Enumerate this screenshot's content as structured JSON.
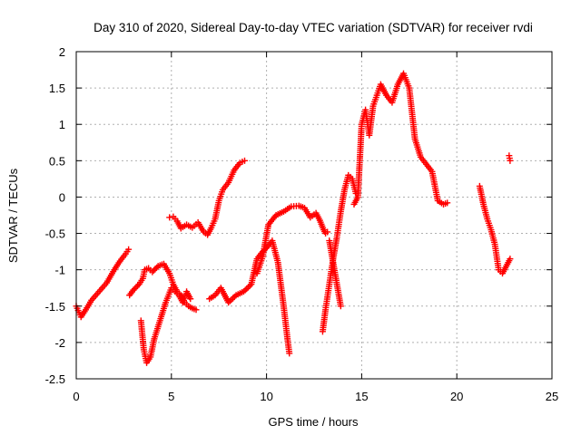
{
  "chart_data": {
    "type": "scatter",
    "title": "Day 310 of 2020, Sidereal Day-to-day VTEC variation (SDTVAR) for receiver rvdi",
    "xlabel": "GPS time / hours",
    "ylabel": "SDTVAR / TECUs",
    "xlim": [
      0,
      25
    ],
    "ylim": [
      -2.5,
      2
    ],
    "xticks": [
      "0",
      "5",
      "10",
      "15",
      "20",
      "25"
    ],
    "yticks": [
      "-2.5",
      "-2",
      "-1.5",
      "-1",
      "-0.5",
      "0",
      "0.5",
      "1",
      "1.5",
      "2"
    ],
    "grid": true,
    "marker": "+",
    "marker_color": "#ff0000",
    "series": [
      {
        "x": [
          0.0,
          0.25,
          0.5,
          0.8,
          1.2,
          1.6,
          2.0,
          2.3,
          2.6,
          2.75
        ],
        "y": [
          -1.5,
          -1.65,
          -1.55,
          -1.42,
          -1.3,
          -1.18,
          -1.0,
          -0.88,
          -0.78,
          -0.72
        ]
      },
      {
        "x": [
          2.8,
          3.0,
          3.3,
          3.5,
          3.6,
          3.8,
          4.0,
          4.3,
          4.6,
          4.9,
          5.1,
          5.3,
          5.5,
          5.7,
          5.9,
          6.1,
          6.3
        ],
        "y": [
          -1.35,
          -1.28,
          -1.2,
          -1.12,
          -1.0,
          -0.98,
          -1.03,
          -0.95,
          -0.92,
          -1.05,
          -1.2,
          -1.3,
          -1.35,
          -1.45,
          -1.5,
          -1.53,
          -1.55
        ]
      },
      {
        "x": [
          3.4,
          3.55,
          3.7,
          3.9,
          4.1,
          4.4,
          4.7,
          5.0,
          5.2,
          5.4,
          5.6,
          5.8,
          6.0
        ],
        "y": [
          -1.7,
          -2.1,
          -2.28,
          -2.2,
          -1.95,
          -1.7,
          -1.45,
          -1.25,
          -1.3,
          -1.35,
          -1.45,
          -1.3,
          -1.4
        ]
      },
      {
        "x": [
          4.9,
          5.1,
          5.3,
          5.5,
          5.8,
          6.1,
          6.4,
          6.7,
          6.9,
          7.1,
          7.3,
          7.5,
          7.7,
          8.0,
          8.3,
          8.6,
          8.85
        ],
        "y": [
          -0.28,
          -0.27,
          -0.33,
          -0.43,
          -0.38,
          -0.42,
          -0.35,
          -0.48,
          -0.52,
          -0.42,
          -0.3,
          -0.05,
          0.1,
          0.2,
          0.37,
          0.47,
          0.5
        ]
      },
      {
        "x": [
          7.0,
          7.3,
          7.6,
          8.0,
          8.4,
          8.8,
          9.2,
          9.5,
          9.8,
          10.0,
          10.3,
          10.6,
          10.9,
          11.1,
          11.2
        ],
        "y": [
          -1.4,
          -1.35,
          -1.25,
          -1.45,
          -1.35,
          -1.3,
          -1.2,
          -0.85,
          -0.75,
          -0.7,
          -0.6,
          -0.9,
          -1.5,
          -1.95,
          -2.15
        ]
      },
      {
        "x": [
          9.5,
          9.8,
          10.1,
          10.5,
          10.9,
          11.3,
          11.7,
          12.0,
          12.3,
          12.6,
          12.8,
          13.0,
          13.1,
          13.2
        ],
        "y": [
          -1.05,
          -0.82,
          -0.38,
          -0.25,
          -0.2,
          -0.13,
          -0.12,
          -0.15,
          -0.28,
          -0.22,
          -0.32,
          -0.45,
          -0.5,
          -0.48
        ]
      },
      {
        "x": [
          12.95,
          13.1,
          13.3,
          13.5,
          13.7,
          13.9,
          14.1,
          14.3,
          14.5,
          14.7
        ],
        "y": [
          -1.85,
          -1.55,
          -1.2,
          -0.85,
          -0.55,
          -0.2,
          0.1,
          0.3,
          0.25,
          0.05
        ]
      },
      {
        "x": [
          13.3,
          13.5,
          13.7,
          13.9
        ],
        "y": [
          -0.6,
          -0.9,
          -1.2,
          -1.5
        ]
      },
      {
        "x": [
          14.6,
          14.8,
          15.0,
          15.2,
          15.4,
          15.6,
          15.8,
          16.0,
          16.3,
          16.6,
          16.9,
          17.2,
          17.5,
          17.8,
          18.1,
          18.4,
          18.7,
          19.0,
          19.3,
          19.5
        ],
        "y": [
          -0.1,
          0.0,
          1.0,
          1.2,
          0.85,
          1.25,
          1.4,
          1.55,
          1.4,
          1.3,
          1.55,
          1.7,
          1.5,
          0.8,
          0.55,
          0.45,
          0.35,
          -0.05,
          -0.1,
          -0.08
        ]
      },
      {
        "x": [
          21.2,
          21.4,
          21.6,
          21.8,
          22.0,
          22.2,
          22.4,
          22.6,
          22.8
        ],
        "y": [
          0.15,
          -0.1,
          -0.3,
          -0.45,
          -0.65,
          -1.0,
          -1.05,
          -0.95,
          -0.85
        ]
      },
      {
        "x": [
          22.75,
          22.8
        ],
        "y": [
          0.57,
          0.5
        ]
      }
    ]
  }
}
